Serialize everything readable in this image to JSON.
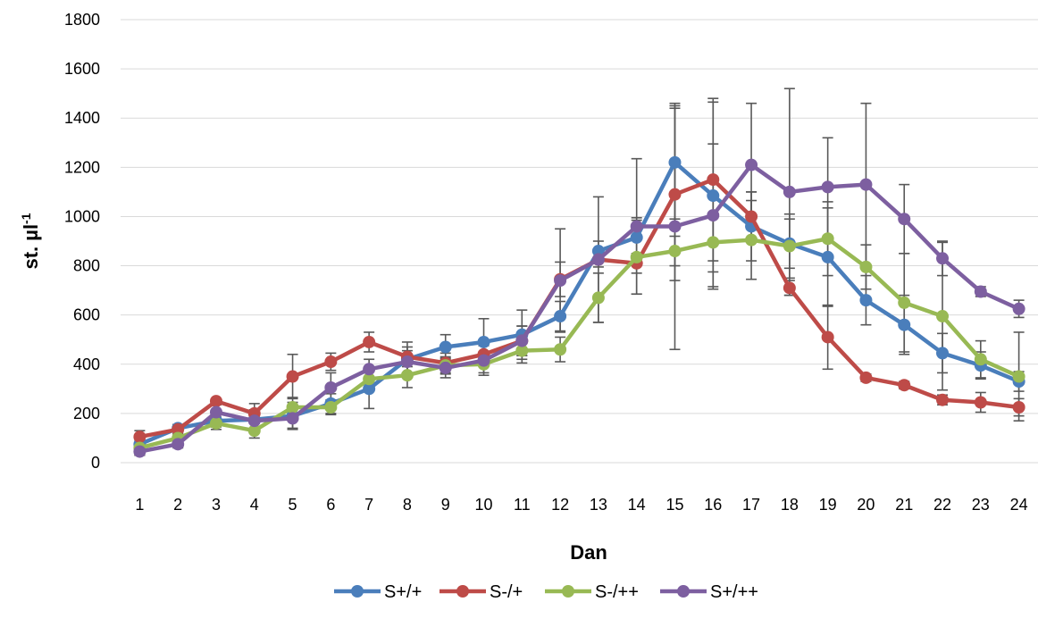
{
  "chart_data": {
    "type": "line",
    "title": "",
    "xlabel": "Dan",
    "ylabel_main": "st. µl",
    "ylabel_sup": "-1",
    "ylim": [
      0,
      1800
    ],
    "yticks": [
      0,
      200,
      400,
      600,
      800,
      1000,
      1200,
      1400,
      1600,
      1800
    ],
    "grid": "horizontal",
    "legend_position": "bottom",
    "categories": [
      "1",
      "2",
      "3",
      "4",
      "5",
      "6",
      "7",
      "8",
      "9",
      "10",
      "11",
      "12",
      "13",
      "14",
      "15",
      "16",
      "17",
      "18",
      "19",
      "20",
      "21",
      "22",
      "23",
      "24"
    ],
    "series": [
      {
        "name": "S+/+",
        "color": "#4a7ebb",
        "values": [
          75,
          140,
          170,
          175,
          190,
          240,
          300,
          420,
          470,
          490,
          520,
          595,
          860,
          915,
          1220,
          1085,
          960,
          890,
          835,
          660,
          560,
          445,
          395,
          330
        ],
        "errors": [
          35,
          15,
          25,
          40,
          55,
          40,
          80,
          70,
          50,
          95,
          100,
          60,
          40,
          80,
          230,
          380,
          140,
          100,
          200,
          100,
          120,
          80,
          55,
          40
        ]
      },
      {
        "name": "S-/+",
        "color": "#be4b48",
        "values": [
          105,
          135,
          250,
          200,
          350,
          410,
          490,
          430,
          405,
          440,
          495,
          745,
          825,
          810,
          1090,
          1150,
          1000,
          710,
          510,
          345,
          315,
          255,
          245,
          225
        ],
        "errors": [
          25,
          20,
          10,
          40,
          90,
          35,
          40,
          40,
          40,
          40,
          60,
          70,
          30,
          40,
          350,
          330,
          100,
          30,
          130,
          15,
          15,
          20,
          40,
          35
        ]
      },
      {
        "name": "S-/++",
        "color": "#98b954",
        "values": [
          60,
          100,
          160,
          130,
          225,
          225,
          340,
          355,
          395,
          400,
          455,
          460,
          670,
          835,
          860,
          895,
          905,
          880,
          910,
          795,
          650,
          595,
          420,
          350
        ],
        "errors": [
          30,
          20,
          25,
          30,
          40,
          30,
          40,
          50,
          35,
          35,
          50,
          50,
          100,
          150,
          60,
          120,
          160,
          130,
          150,
          90,
          200,
          300,
          75,
          180
        ]
      },
      {
        "name": "S+/++",
        "color": "#7d5fa0",
        "values": [
          45,
          75,
          205,
          170,
          180,
          305,
          380,
          410,
          385,
          415,
          495,
          740,
          825,
          960,
          960,
          1005,
          1210,
          1100,
          1120,
          1130,
          990,
          830,
          695,
          625
        ],
        "errors": [
          15,
          15,
          30,
          30,
          40,
          60,
          40,
          45,
          40,
          60,
          60,
          210,
          255,
          275,
          500,
          290,
          250,
          420,
          200,
          330,
          140,
          70,
          20,
          35
        ]
      }
    ]
  }
}
